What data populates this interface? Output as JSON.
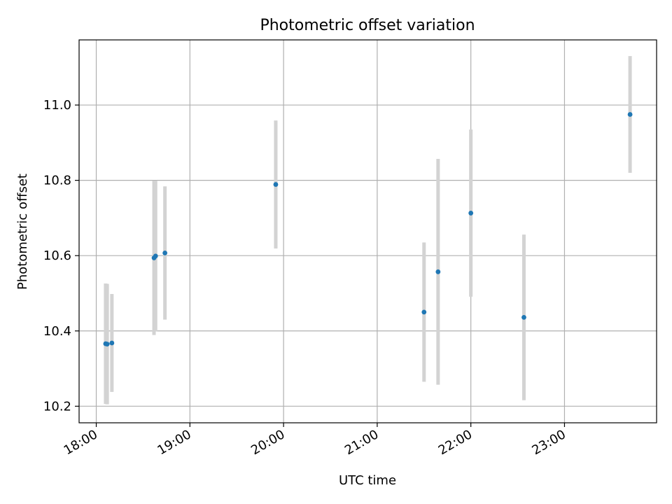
{
  "chart_data": {
    "type": "scatter",
    "title": "Photometric offset variation",
    "xlabel": "UTC time",
    "ylabel": "Photometric offset",
    "grid": true,
    "x_ticks": [
      "18:00",
      "19:00",
      "20:00",
      "21:00",
      "22:00",
      "23:00"
    ],
    "x_tick_hours": [
      18,
      19,
      20,
      21,
      22,
      23
    ],
    "y_ticks": [
      "10.2",
      "10.4",
      "10.6",
      "10.8",
      "11.0"
    ],
    "y_tick_values": [
      10.2,
      10.4,
      10.6,
      10.8,
      11.0
    ],
    "xlim": [
      "17:49",
      "23:59"
    ],
    "ylim": [
      10.156,
      11.173
    ],
    "marker_color": "#1f77b4",
    "errorbar_color": "#d3d3d3",
    "points": [
      {
        "x": "18:06",
        "y": 10.366,
        "yerr": 0.16
      },
      {
        "x": "18:07",
        "y": 10.365,
        "yerr": 0.16
      },
      {
        "x": "18:10",
        "y": 10.368,
        "yerr": 0.13
      },
      {
        "x": "18:37",
        "y": 10.594,
        "yerr": 0.205
      },
      {
        "x": "18:38",
        "y": 10.599,
        "yerr": 0.2
      },
      {
        "x": "18:44",
        "y": 10.607,
        "yerr": 0.177
      },
      {
        "x": "19:55",
        "y": 10.789,
        "yerr": 0.17
      },
      {
        "x": "21:30",
        "y": 10.45,
        "yerr": 0.185
      },
      {
        "x": "21:39",
        "y": 10.557,
        "yerr": 0.3
      },
      {
        "x": "22:00",
        "y": 10.713,
        "yerr": 0.222
      },
      {
        "x": "22:34",
        "y": 10.436,
        "yerr": 0.22
      },
      {
        "x": "23:42",
        "y": 10.975,
        "yerr": 0.155
      }
    ]
  }
}
